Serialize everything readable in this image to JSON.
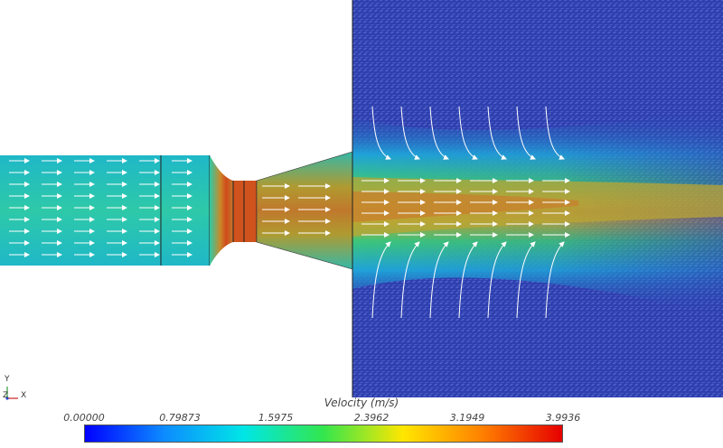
{
  "chart_data": {
    "type": "heatmap",
    "title": "",
    "legend": {
      "title": "Velocity (m/s)",
      "ticks": [
        "0.00000",
        "0.79873",
        "1.5975",
        "2.3962",
        "3.1949",
        "3.9936"
      ],
      "range": [
        0.0,
        3.9936
      ],
      "colormap": [
        "#0000ff",
        "#0d8cff",
        "#00e6e6",
        "#33e64d",
        "#ffe600",
        "#ff8000",
        "#e60000"
      ]
    },
    "field": {
      "description_values": {
        "inlet_velocity": 1.4,
        "throat_velocity": 3.8,
        "jet_core_velocity": 2.6,
        "ambient_velocity": 0.1
      }
    }
  },
  "orientation": {
    "y_label": "Y",
    "z_label": "Z",
    "x_label": "X",
    "y_color": "#2e9e3a",
    "x_color": "#cc2222",
    "z_color": "#2244cc"
  }
}
